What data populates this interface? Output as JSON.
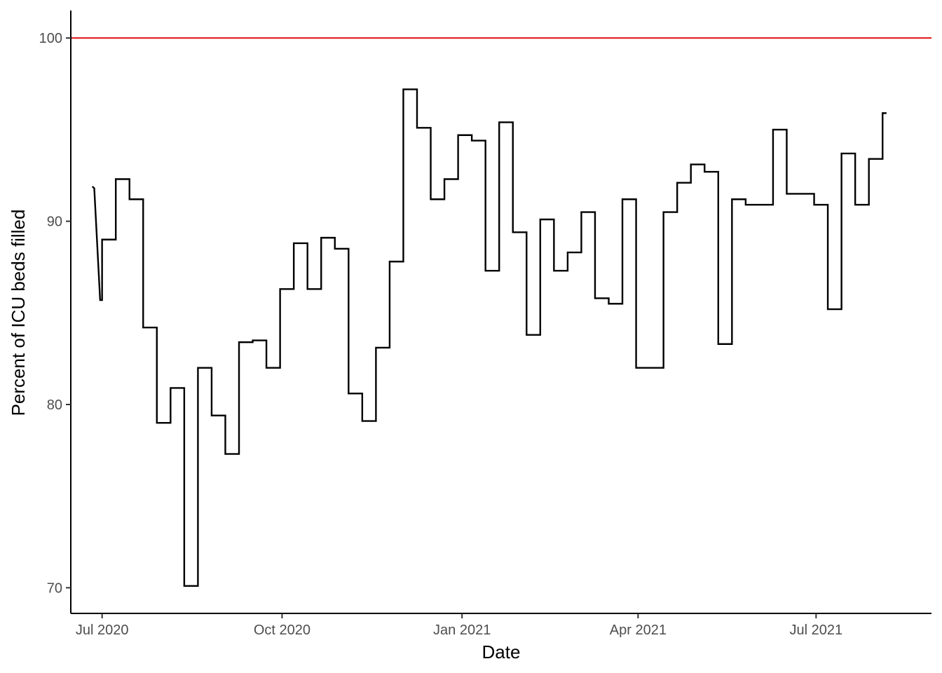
{
  "chart_data": {
    "type": "line",
    "step": true,
    "xlabel": "Date",
    "ylabel": "Percent of ICU beds filled",
    "x_ticks": [
      {
        "date": "2020-07-01",
        "label": "Jul 2020"
      },
      {
        "date": "2020-10-01",
        "label": "Oct 2020"
      },
      {
        "date": "2021-01-01",
        "label": "Jan 2021"
      },
      {
        "date": "2021-04-01",
        "label": "Apr 2021"
      },
      {
        "date": "2021-07-01",
        "label": "Jul 2021"
      }
    ],
    "y_ticks": [
      70,
      80,
      90,
      100
    ],
    "xlim": [
      "2020-06-15",
      "2021-08-29"
    ],
    "ylim": [
      68.6,
      101.5
    ],
    "grid": false,
    "reference_line": {
      "y": 100,
      "color": "#e31a1c"
    },
    "line_color": "#000000",
    "series": [
      {
        "points": [
          [
            "2020-06-26",
            91.9
          ],
          [
            "2020-06-27",
            91.8
          ],
          [
            "2020-06-30",
            85.7
          ],
          [
            "2020-07-01",
            85.7
          ],
          [
            "2020-07-01",
            89.0
          ],
          [
            "2020-07-08",
            89.0
          ],
          [
            "2020-07-08",
            92.3
          ],
          [
            "2020-07-15",
            92.3
          ],
          [
            "2020-07-15",
            91.2
          ],
          [
            "2020-07-22",
            91.2
          ],
          [
            "2020-07-22",
            84.2
          ],
          [
            "2020-07-29",
            84.2
          ],
          [
            "2020-07-29",
            79.0
          ],
          [
            "2020-08-05",
            79.0
          ],
          [
            "2020-08-05",
            80.9
          ],
          [
            "2020-08-12",
            80.9
          ],
          [
            "2020-08-12",
            70.1
          ],
          [
            "2020-08-19",
            70.1
          ],
          [
            "2020-08-19",
            82.0
          ],
          [
            "2020-08-26",
            82.0
          ],
          [
            "2020-08-26",
            79.4
          ],
          [
            "2020-09-02",
            79.4
          ],
          [
            "2020-09-02",
            77.3
          ],
          [
            "2020-09-09",
            77.3
          ],
          [
            "2020-09-09",
            83.4
          ],
          [
            "2020-09-16",
            83.4
          ],
          [
            "2020-09-16",
            83.5
          ],
          [
            "2020-09-23",
            83.5
          ],
          [
            "2020-09-23",
            82.0
          ],
          [
            "2020-09-30",
            82.0
          ],
          [
            "2020-09-30",
            86.3
          ],
          [
            "2020-10-07",
            86.3
          ],
          [
            "2020-10-07",
            88.8
          ],
          [
            "2020-10-14",
            88.8
          ],
          [
            "2020-10-14",
            86.3
          ],
          [
            "2020-10-21",
            86.3
          ],
          [
            "2020-10-21",
            89.1
          ],
          [
            "2020-10-28",
            89.1
          ],
          [
            "2020-10-28",
            88.5
          ],
          [
            "2020-11-04",
            88.5
          ],
          [
            "2020-11-04",
            80.6
          ],
          [
            "2020-11-11",
            80.6
          ],
          [
            "2020-11-11",
            79.1
          ],
          [
            "2020-11-18",
            79.1
          ],
          [
            "2020-11-18",
            83.1
          ],
          [
            "2020-11-25",
            83.1
          ],
          [
            "2020-11-25",
            87.8
          ],
          [
            "2020-12-02",
            87.8
          ],
          [
            "2020-12-02",
            97.2
          ],
          [
            "2020-12-09",
            97.2
          ],
          [
            "2020-12-09",
            95.1
          ],
          [
            "2020-12-16",
            95.1
          ],
          [
            "2020-12-16",
            91.2
          ],
          [
            "2020-12-23",
            91.2
          ],
          [
            "2020-12-23",
            92.3
          ],
          [
            "2020-12-30",
            92.3
          ],
          [
            "2020-12-30",
            94.7
          ],
          [
            "2021-01-06",
            94.7
          ],
          [
            "2021-01-06",
            94.4
          ],
          [
            "2021-01-13",
            94.4
          ],
          [
            "2021-01-13",
            87.3
          ],
          [
            "2021-01-20",
            87.3
          ],
          [
            "2021-01-20",
            95.4
          ],
          [
            "2021-01-27",
            95.4
          ],
          [
            "2021-01-27",
            89.4
          ],
          [
            "2021-02-03",
            89.4
          ],
          [
            "2021-02-03",
            83.8
          ],
          [
            "2021-02-10",
            83.8
          ],
          [
            "2021-02-10",
            90.1
          ],
          [
            "2021-02-17",
            90.1
          ],
          [
            "2021-02-17",
            87.3
          ],
          [
            "2021-02-24",
            87.3
          ],
          [
            "2021-02-24",
            88.3
          ],
          [
            "2021-03-03",
            88.3
          ],
          [
            "2021-03-03",
            90.5
          ],
          [
            "2021-03-10",
            90.5
          ],
          [
            "2021-03-10",
            85.8
          ],
          [
            "2021-03-17",
            85.8
          ],
          [
            "2021-03-17",
            85.5
          ],
          [
            "2021-03-24",
            85.5
          ],
          [
            "2021-03-24",
            91.2
          ],
          [
            "2021-03-31",
            91.2
          ],
          [
            "2021-03-31",
            82.0
          ],
          [
            "2021-04-14",
            82.0
          ],
          [
            "2021-04-14",
            90.5
          ],
          [
            "2021-04-21",
            90.5
          ],
          [
            "2021-04-21",
            92.1
          ],
          [
            "2021-04-28",
            92.1
          ],
          [
            "2021-04-28",
            93.1
          ],
          [
            "2021-05-05",
            93.1
          ],
          [
            "2021-05-05",
            92.7
          ],
          [
            "2021-05-12",
            92.7
          ],
          [
            "2021-05-12",
            83.3
          ],
          [
            "2021-05-19",
            83.3
          ],
          [
            "2021-05-19",
            91.2
          ],
          [
            "2021-05-26",
            91.2
          ],
          [
            "2021-05-26",
            90.9
          ],
          [
            "2021-06-09",
            90.9
          ],
          [
            "2021-06-09",
            95.0
          ],
          [
            "2021-06-16",
            95.0
          ],
          [
            "2021-06-16",
            91.5
          ],
          [
            "2021-06-30",
            91.5
          ],
          [
            "2021-06-30",
            90.9
          ],
          [
            "2021-07-07",
            90.9
          ],
          [
            "2021-07-07",
            85.2
          ],
          [
            "2021-07-14",
            85.2
          ],
          [
            "2021-07-14",
            93.7
          ],
          [
            "2021-07-21",
            93.7
          ],
          [
            "2021-07-21",
            90.9
          ],
          [
            "2021-07-28",
            90.9
          ],
          [
            "2021-07-28",
            93.4
          ],
          [
            "2021-08-04",
            93.4
          ],
          [
            "2021-08-04",
            95.9
          ],
          [
            "2021-08-06",
            95.9
          ]
        ]
      }
    ]
  }
}
